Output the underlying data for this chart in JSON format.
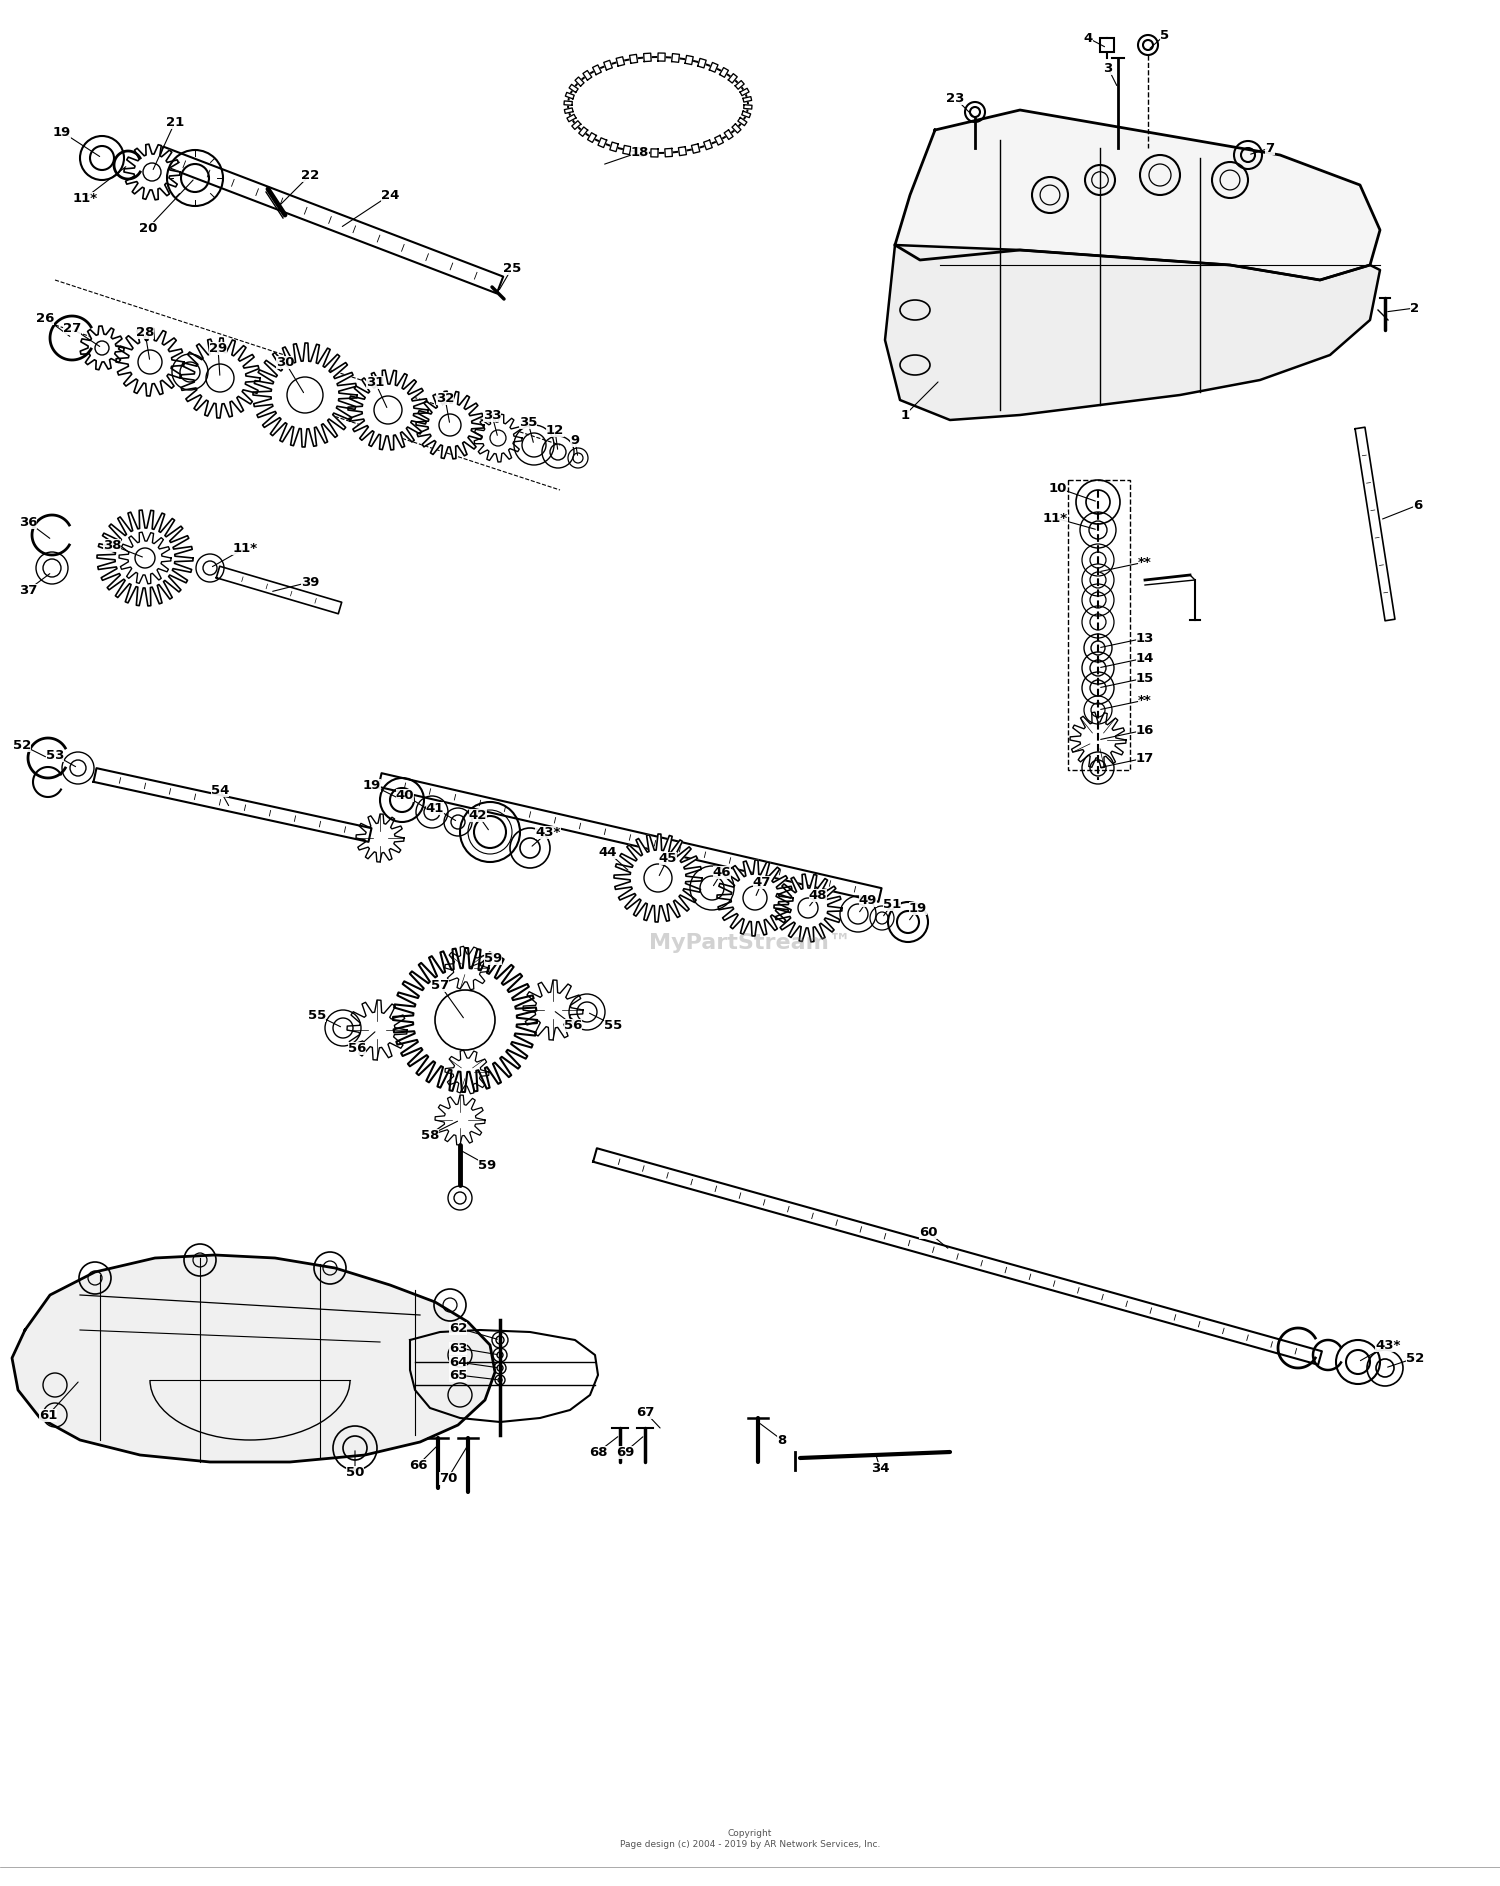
{
  "background_color": "#ffffff",
  "line_color": "#000000",
  "fig_width": 15.0,
  "fig_height": 18.86,
  "copyright": "Copyright\nPage design (c) 2004 - 2019 by AR Network Services, Inc.",
  "watermark": "MyPartStream™",
  "dpi": 100
}
